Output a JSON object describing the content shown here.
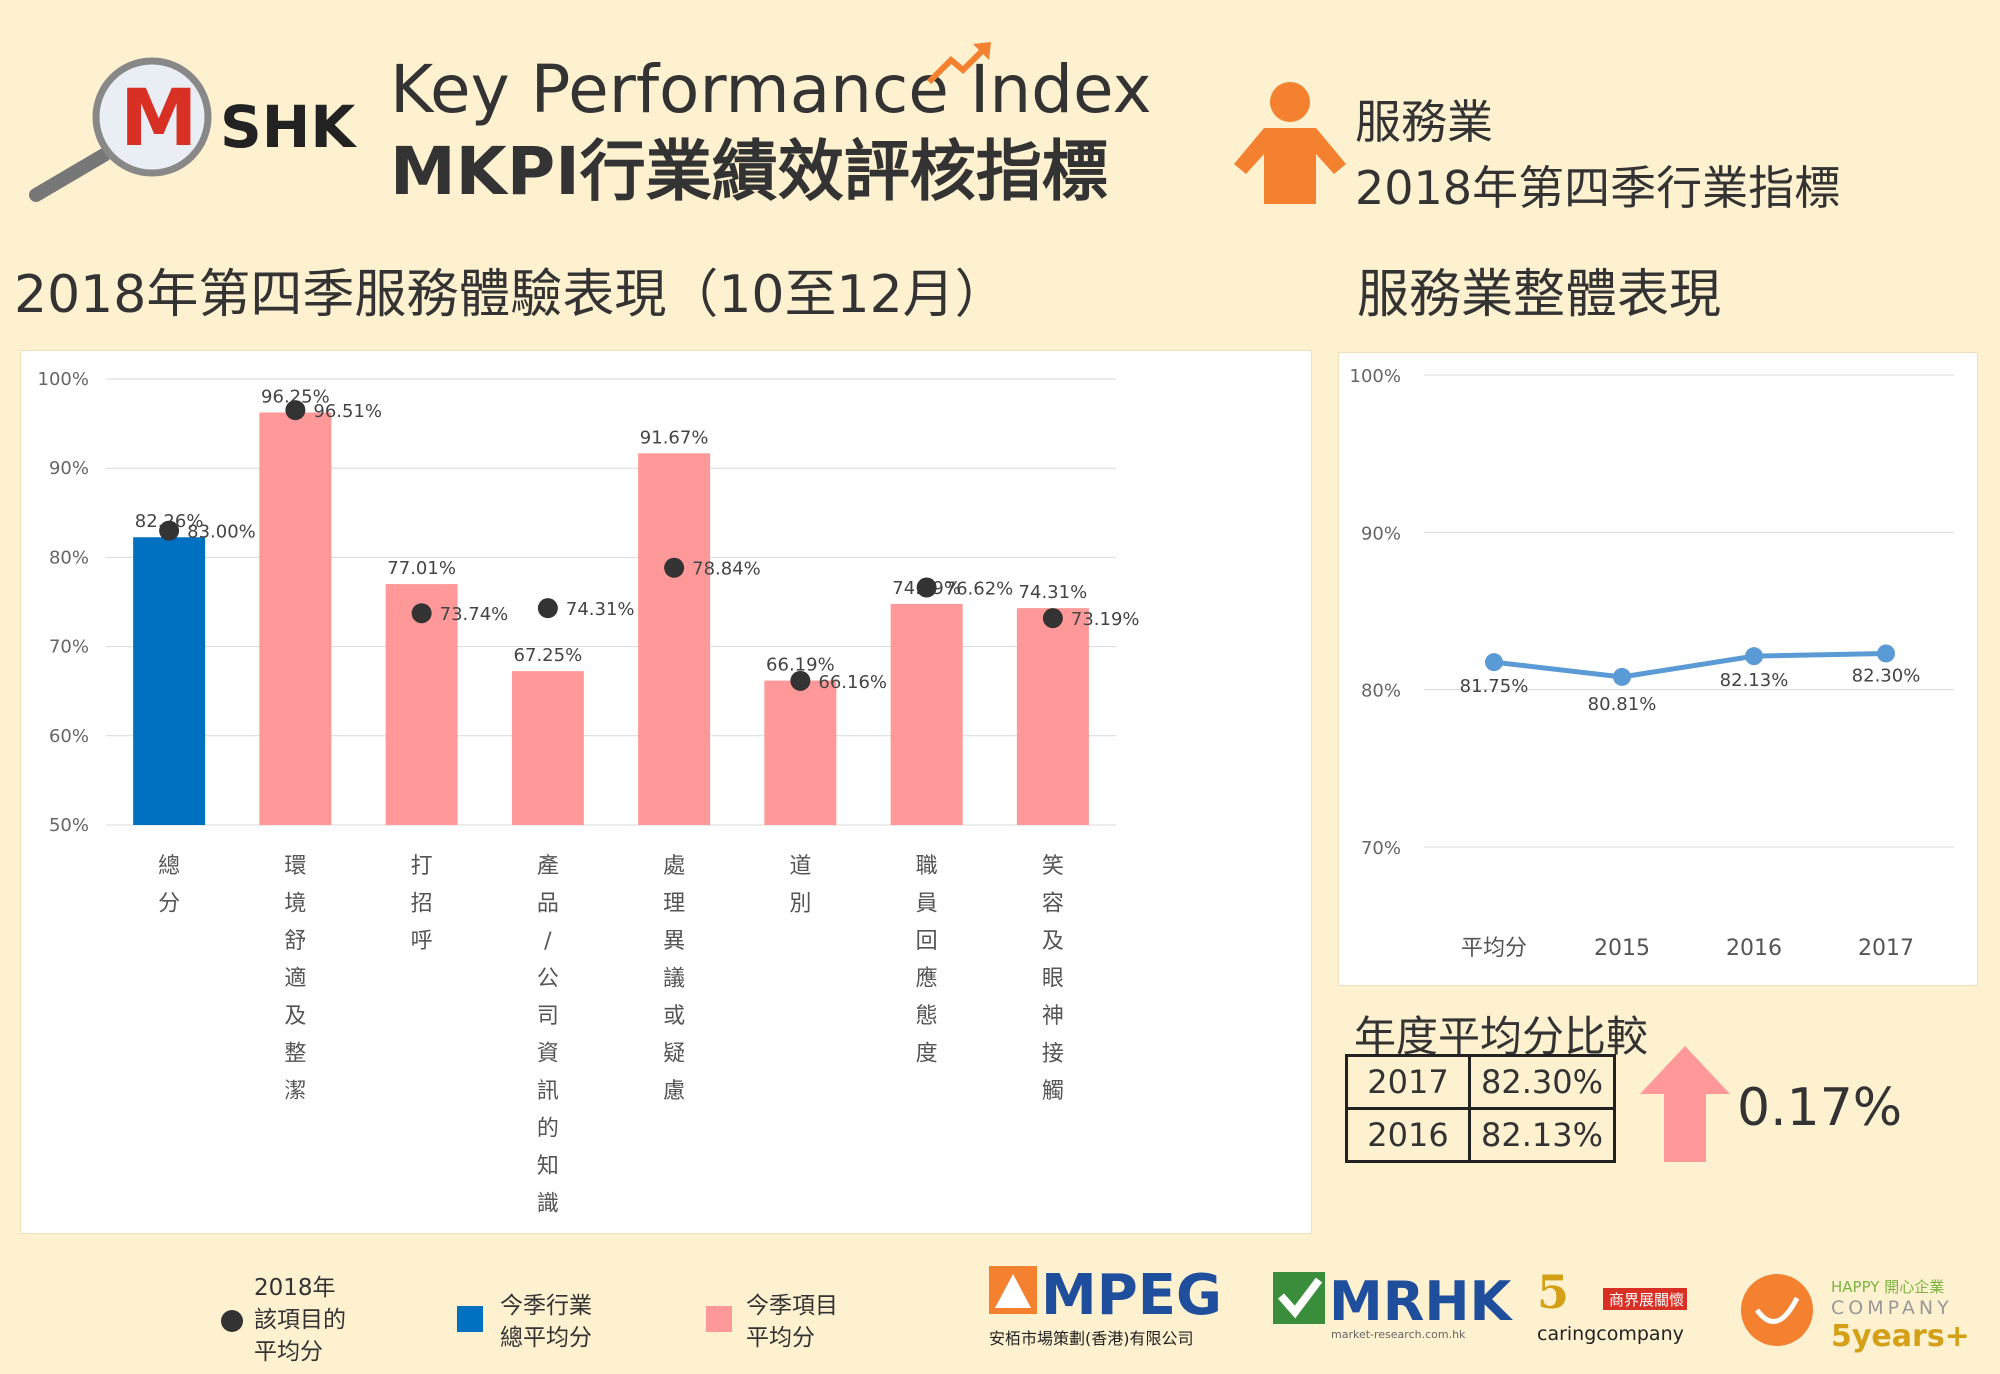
{
  "header": {
    "logo_text": "SHK",
    "title_en": "Key Performance Index",
    "title_zh": "MKPI行業績效評核指標",
    "industry": "服務業",
    "industry_sub": "2018年第四季行業指標"
  },
  "main_heading": "2018年第四季服務體驗表現（10至12月）",
  "side_heading": "服務業整體表現",
  "colors": {
    "background": "#fdf1d0",
    "overall_bar": "#0070c0",
    "item_bar": "#ff9999",
    "dot": "#333333",
    "line": "#5b9bd5",
    "accent_orange": "#f4812f",
    "arrow": "#ff9999"
  },
  "chart_data": [
    {
      "type": "bar",
      "ylim": [
        50,
        100
      ],
      "yticks": [
        "50%",
        "60%",
        "70%",
        "80%",
        "90%",
        "100%"
      ],
      "categories": [
        "總分",
        "環境舒適及整潔",
        "打招呼",
        "產品/公司資訊的知識",
        "處理異議或疑慮",
        "道別",
        "職員回應態度",
        "笑容及眼神接觸"
      ],
      "bar_values": [
        82.26,
        96.25,
        77.01,
        67.25,
        91.67,
        66.19,
        74.79,
        74.31
      ],
      "bar_labels": [
        "82.26%",
        "96.25%",
        "77.01%",
        "67.25%",
        "91.67%",
        "66.19%",
        "74.79%",
        "74.31%"
      ],
      "dot_values": [
        83.0,
        96.51,
        73.74,
        74.31,
        78.84,
        66.16,
        76.62,
        73.19
      ],
      "dot_labels": [
        "83.00%",
        "96.51%",
        "73.74%",
        "74.31%",
        "78.84%",
        "66.16%",
        "76.62%",
        "73.19%"
      ]
    },
    {
      "type": "line",
      "ylim": [
        70,
        100
      ],
      "yticks": [
        "70%",
        "80%",
        "90%",
        "100%"
      ],
      "categories": [
        "平均分",
        "2015",
        "2016",
        "2017"
      ],
      "values": [
        81.75,
        80.81,
        82.13,
        82.3
      ],
      "labels": [
        "81.75%",
        "80.81%",
        "82.13%",
        "82.30%"
      ]
    }
  ],
  "yoy": {
    "title": "年度平均分比較",
    "rows": [
      {
        "year": "2017",
        "value": "82.30%"
      },
      {
        "year": "2016",
        "value": "82.13%"
      }
    ],
    "change": "0.17%"
  },
  "legend": {
    "dot_label_lines": [
      "2018年",
      "該項目的",
      "平均分"
    ],
    "overall_label_lines": [
      "今季行業",
      "總平均分"
    ],
    "item_label_lines": [
      "今季項目",
      "平均分"
    ]
  },
  "footer": {
    "mpeg": "MPEG",
    "mpeg_sub": "安栢市場策劃(香港)有限公司",
    "mrhk": "MRHK",
    "mrhk_sub": "market-research.com.hk",
    "caring": "caringcompany",
    "caring_badge": "商界展關懷",
    "happy": "HAPPY 開心企業",
    "happy_company": "COMPANY",
    "happy_years": "5years+"
  }
}
